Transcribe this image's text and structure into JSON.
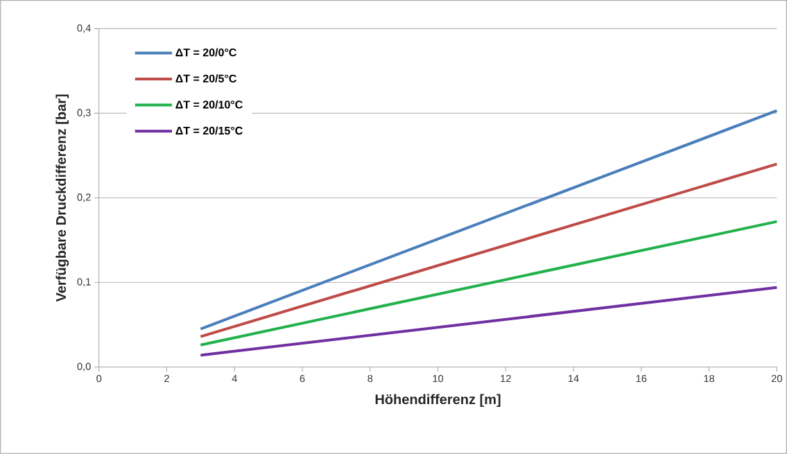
{
  "chart_data": {
    "type": "line",
    "xlabel": "Höhendifferenz  [m]",
    "ylabel": "Verfügbare Druckdifferenz [bar]",
    "x": [
      3,
      20
    ],
    "series": [
      {
        "name": "ΔT = 20/0°C",
        "color": "#4a7ebb",
        "values": [
          0.045,
          0.303
        ]
      },
      {
        "name": "ΔT = 20/5°C",
        "color": "#be4b48",
        "values": [
          0.036,
          0.24
        ]
      },
      {
        "name": "ΔT = 20/10°C",
        "color": "#22b14c",
        "values": [
          0.026,
          0.172
        ]
      },
      {
        "name": "ΔT = 20/15°C",
        "color": "#7030a0",
        "values": [
          0.014,
          0.094
        ]
      }
    ],
    "xlim": [
      0,
      20
    ],
    "xticks": [
      0,
      2,
      4,
      6,
      8,
      10,
      12,
      14,
      16,
      18,
      20
    ],
    "ylim": [
      0,
      0.4
    ],
    "yticks": [
      {
        "value": 0,
        "label": "0,0"
      },
      {
        "value": 0.1,
        "label": "0,1"
      },
      {
        "value": 0.2,
        "label": "0,2"
      },
      {
        "value": 0.3,
        "label": "0,3"
      },
      {
        "value": 0.4,
        "label": "0,4"
      }
    ],
    "grid": "y",
    "legend": "top left",
    "marker": "none",
    "line_style": "solid"
  }
}
